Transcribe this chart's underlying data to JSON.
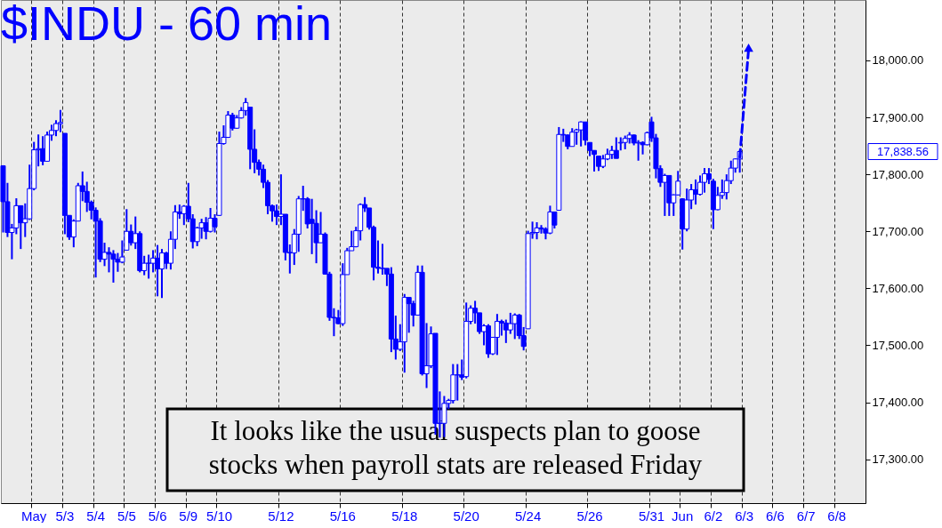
{
  "chart_data": {
    "type": "candlestick",
    "title": "$INDU - 60 min",
    "color": "#0000ff",
    "ylim": [
      17223,
      18106
    ],
    "yticks": [
      {
        "value": 17300,
        "label": "17,300.00"
      },
      {
        "value": 17400,
        "label": "17,400.00"
      },
      {
        "value": 17500,
        "label": "17,500.00"
      },
      {
        "value": 17600,
        "label": "17,600.00"
      },
      {
        "value": 17700,
        "label": "17,700.00"
      },
      {
        "value": 17800,
        "label": "17,800.00"
      },
      {
        "value": 17900,
        "label": "17,900.00"
      },
      {
        "value": 18000,
        "label": "18,000.00"
      }
    ],
    "grid": "x",
    "categories": [
      null,
      null,
      null,
      null,
      null,
      null,
      null,
      "May",
      null,
      null,
      null,
      null,
      null,
      null,
      "5/3",
      null,
      null,
      null,
      null,
      null,
      null,
      "5/4",
      null,
      null,
      null,
      null,
      null,
      null,
      "5/5",
      null,
      null,
      null,
      null,
      null,
      null,
      "5/6",
      null,
      null,
      null,
      null,
      null,
      null,
      "5/9",
      null,
      null,
      null,
      null,
      null,
      null,
      "5/10",
      null,
      null,
      null,
      null,
      null,
      null,
      null,
      null,
      null,
      null,
      null,
      null,
      null,
      "5/12",
      null,
      null,
      null,
      null,
      null,
      null,
      null,
      null,
      null,
      null,
      null,
      null,
      null,
      "5/16",
      null,
      null,
      null,
      null,
      null,
      null,
      null,
      null,
      null,
      null,
      null,
      null,
      null,
      "5/18",
      null,
      null,
      null,
      null,
      null,
      null,
      null,
      null,
      null,
      null,
      null,
      null,
      null,
      "5/20",
      null,
      null,
      null,
      null,
      null,
      null,
      null,
      null,
      null,
      null,
      null,
      null,
      null,
      "5/24",
      null,
      null,
      null,
      null,
      null,
      null,
      null,
      null,
      null,
      null,
      null,
      null,
      null,
      "5/26",
      null,
      null,
      null,
      null,
      null,
      null,
      null,
      null,
      null,
      null,
      null,
      null,
      null,
      "5/31",
      null,
      null,
      null,
      null,
      null,
      null,
      "Jun",
      null,
      null,
      null,
      null,
      null,
      null,
      "6/2",
      null,
      null,
      null,
      null,
      null,
      null,
      "6/3",
      null,
      null,
      null,
      null,
      null,
      null,
      "6/6",
      null,
      null,
      null,
      null,
      null,
      null,
      "6/7",
      null,
      null,
      null,
      null,
      null,
      null,
      "6/8",
      null,
      null,
      null,
      null,
      null,
      null
    ],
    "ohlc": [
      [
        17815,
        17816,
        17698,
        17752
      ],
      [
        17752,
        17785,
        17690,
        17698
      ],
      [
        17698,
        17713,
        17651,
        17706
      ],
      [
        17706,
        17758,
        17695,
        17745
      ],
      [
        17745,
        17745,
        17669,
        17715
      ],
      [
        17715,
        17749,
        17690,
        17722
      ],
      [
        17722,
        17817,
        17720,
        17775
      ],
      [
        17775,
        17857,
        17772,
        17843
      ],
      [
        17843,
        17870,
        17814,
        17845
      ],
      [
        17845,
        17867,
        17816,
        17823
      ],
      [
        17823,
        17875,
        17823,
        17869
      ],
      [
        17869,
        17887,
        17859,
        17877
      ],
      [
        17877,
        17895,
        17867,
        17889
      ],
      [
        17889,
        17913,
        17874,
        17891
      ],
      [
        17872,
        17872,
        17695,
        17728
      ],
      [
        17728,
        17728,
        17685,
        17690
      ],
      [
        17690,
        17721,
        17672,
        17718
      ],
      [
        17718,
        17785,
        17718,
        17780
      ],
      [
        17780,
        17805,
        17753,
        17770
      ],
      [
        17770,
        17787,
        17734,
        17751
      ],
      [
        17751,
        17754,
        17721,
        17737
      ],
      [
        17737,
        17742,
        17619,
        17718
      ],
      [
        17718,
        17723,
        17646,
        17651
      ],
      [
        17651,
        17680,
        17639,
        17663
      ],
      [
        17663,
        17672,
        17628,
        17660
      ],
      [
        17660,
        17667,
        17610,
        17651
      ],
      [
        17651,
        17662,
        17629,
        17646
      ],
      [
        17646,
        17684,
        17644,
        17655
      ],
      [
        17667,
        17739,
        17667,
        17700
      ],
      [
        17700,
        17712,
        17675,
        17680
      ],
      [
        17680,
        17726,
        17669,
        17696
      ],
      [
        17696,
        17700,
        17628,
        17631
      ],
      [
        17631,
        17657,
        17623,
        17644
      ],
      [
        17644,
        17659,
        17617,
        17644
      ],
      [
        17644,
        17667,
        17628,
        17653
      ],
      [
        17653,
        17676,
        17586,
        17634
      ],
      [
        17634,
        17669,
        17583,
        17662
      ],
      [
        17662,
        17664,
        17634,
        17644
      ],
      [
        17644,
        17700,
        17633,
        17686
      ],
      [
        17686,
        17746,
        17669,
        17734
      ],
      [
        17734,
        17747,
        17722,
        17731
      ],
      [
        17731,
        17746,
        17711,
        17744
      ],
      [
        17744,
        17785,
        17716,
        17722
      ],
      [
        17722,
        17730,
        17670,
        17682
      ],
      [
        17682,
        17708,
        17674,
        17706
      ],
      [
        17706,
        17722,
        17687,
        17715
      ],
      [
        17715,
        17725,
        17686,
        17700
      ],
      [
        17700,
        17741,
        17698,
        17723
      ],
      [
        17723,
        17730,
        17698,
        17708
      ],
      [
        17728,
        17875,
        17727,
        17854
      ],
      [
        17854,
        17886,
        17852,
        17865
      ],
      [
        17865,
        17911,
        17864,
        17904
      ],
      [
        17904,
        17908,
        17877,
        17881
      ],
      [
        17881,
        17904,
        17880,
        17899
      ],
      [
        17899,
        17918,
        17898,
        17912
      ],
      [
        17912,
        17934,
        17903,
        17926
      ],
      [
        17918,
        17918,
        17809,
        17844
      ],
      [
        17844,
        17879,
        17802,
        17821
      ],
      [
        17821,
        17826,
        17798,
        17809
      ],
      [
        17809,
        17817,
        17776,
        17786
      ],
      [
        17786,
        17790,
        17730,
        17745
      ],
      [
        17745,
        17747,
        17717,
        17736
      ],
      [
        17736,
        17747,
        17711,
        17726
      ],
      [
        17726,
        17800,
        17711,
        17730
      ],
      [
        17730,
        17730,
        17649,
        17663
      ],
      [
        17663,
        17677,
        17626,
        17662
      ],
      [
        17662,
        17704,
        17641,
        17695
      ],
      [
        17695,
        17762,
        17664,
        17757
      ],
      [
        17757,
        17780,
        17736,
        17757
      ],
      [
        17757,
        17760,
        17705,
        17713
      ],
      [
        17721,
        17757,
        17660,
        17714
      ],
      [
        17714,
        17737,
        17644,
        17680
      ],
      [
        17680,
        17734,
        17680,
        17695
      ],
      [
        17695,
        17698,
        17624,
        17625
      ],
      [
        17625,
        17629,
        17543,
        17549
      ],
      [
        17549,
        17565,
        17516,
        17548
      ],
      [
        17548,
        17562,
        17537,
        17538
      ],
      [
        17538,
        17644,
        17534,
        17624
      ],
      [
        17624,
        17671,
        17624,
        17666
      ],
      [
        17666,
        17701,
        17666,
        17673
      ],
      [
        17673,
        17708,
        17672,
        17701
      ],
      [
        17701,
        17749,
        17684,
        17747
      ],
      [
        17747,
        17760,
        17734,
        17741
      ],
      [
        17741,
        17741,
        17703,
        17707
      ],
      [
        17707,
        17710,
        17614,
        17637
      ],
      [
        17637,
        17684,
        17626,
        17635
      ],
      [
        17635,
        17678,
        17624,
        17635
      ],
      [
        17635,
        17635,
        17604,
        17625
      ],
      [
        17625,
        17637,
        17488,
        17511
      ],
      [
        17511,
        17552,
        17475,
        17493
      ],
      [
        17493,
        17537,
        17490,
        17506
      ],
      [
        17506,
        17590,
        17452,
        17584
      ],
      [
        17584,
        17584,
        17522,
        17573
      ],
      [
        17573,
        17578,
        17533,
        17553
      ],
      [
        17553,
        17640,
        17552,
        17628
      ],
      [
        17628,
        17640,
        17447,
        17450
      ],
      [
        17450,
        17539,
        17425,
        17464
      ],
      [
        17464,
        17533,
        17460,
        17520
      ],
      [
        17521,
        17521,
        17343,
        17363
      ],
      [
        17363,
        17419,
        17338,
        17363
      ],
      [
        17363,
        17411,
        17339,
        17398
      ],
      [
        17398,
        17406,
        17388,
        17403
      ],
      [
        17403,
        17467,
        17398,
        17448
      ],
      [
        17448,
        17467,
        17403,
        17448
      ],
      [
        17448,
        17475,
        17439,
        17444
      ],
      [
        17445,
        17575,
        17442,
        17542
      ],
      [
        17542,
        17570,
        17537,
        17565
      ],
      [
        17565,
        17578,
        17538,
        17557
      ],
      [
        17557,
        17557,
        17520,
        17524
      ],
      [
        17524,
        17537,
        17500,
        17534
      ],
      [
        17534,
        17537,
        17478,
        17485
      ],
      [
        17485,
        17514,
        17483,
        17514
      ],
      [
        17514,
        17555,
        17483,
        17542
      ],
      [
        17542,
        17545,
        17517,
        17539
      ],
      [
        17539,
        17545,
        17504,
        17527
      ],
      [
        17527,
        17557,
        17520,
        17538
      ],
      [
        17538,
        17556,
        17511,
        17553
      ],
      [
        17553,
        17555,
        17511,
        17517
      ],
      [
        17517,
        17532,
        17491,
        17498
      ],
      [
        17529,
        17701,
        17529,
        17696
      ],
      [
        17696,
        17717,
        17687,
        17698
      ],
      [
        17698,
        17716,
        17686,
        17706
      ],
      [
        17706,
        17711,
        17696,
        17704
      ],
      [
        17704,
        17707,
        17686,
        17697
      ],
      [
        17697,
        17745,
        17695,
        17734
      ],
      [
        17734,
        17734,
        17705,
        17711
      ],
      [
        17737,
        17883,
        17737,
        17870
      ],
      [
        17870,
        17880,
        17857,
        17869
      ],
      [
        17869,
        17870,
        17844,
        17849
      ],
      [
        17849,
        17881,
        17849,
        17874
      ],
      [
        17874,
        17880,
        17852,
        17878
      ],
      [
        17878,
        17893,
        17849,
        17892
      ],
      [
        17892,
        17892,
        17851,
        17860
      ],
      [
        17856,
        17856,
        17832,
        17842
      ],
      [
        17842,
        17842,
        17805,
        17835
      ],
      [
        17832,
        17832,
        17806,
        17814
      ],
      [
        17814,
        17834,
        17811,
        17827
      ],
      [
        17827,
        17845,
        17825,
        17835
      ],
      [
        17835,
        17850,
        17827,
        17842
      ],
      [
        17842,
        17865,
        17828,
        17828
      ],
      [
        17855,
        17865,
        17842,
        17856
      ],
      [
        17856,
        17868,
        17844,
        17863
      ],
      [
        17863,
        17874,
        17854,
        17869
      ],
      [
        17869,
        17870,
        17851,
        17855
      ],
      [
        17855,
        17860,
        17824,
        17856
      ],
      [
        17856,
        17858,
        17835,
        17852
      ],
      [
        17852,
        17875,
        17851,
        17873
      ],
      [
        17892,
        17901,
        17857,
        17864
      ],
      [
        17864,
        17871,
        17793,
        17810
      ],
      [
        17810,
        17816,
        17778,
        17786
      ],
      [
        17786,
        17801,
        17727,
        17798
      ],
      [
        17798,
        17798,
        17727,
        17750
      ],
      [
        17750,
        17765,
        17727,
        17764
      ],
      [
        17764,
        17806,
        17763,
        17788
      ],
      [
        17757,
        17758,
        17668,
        17704
      ],
      [
        17704,
        17775,
        17700,
        17755
      ],
      [
        17755,
        17783,
        17739,
        17773
      ],
      [
        17773,
        17791,
        17747,
        17765
      ],
      [
        17765,
        17798,
        17763,
        17786
      ],
      [
        17786,
        17811,
        17768,
        17801
      ],
      [
        17801,
        17811,
        17783,
        17791
      ],
      [
        17788,
        17792,
        17704,
        17738
      ],
      [
        17738,
        17778,
        17737,
        17763
      ],
      [
        17763,
        17791,
        17757,
        17768
      ],
      [
        17768,
        17800,
        17756,
        17789
      ],
      [
        17789,
        17824,
        17783,
        17811
      ],
      [
        17811,
        17828,
        17803,
        17827
      ],
      [
        17827,
        17842,
        17803,
        17840
      ],
      null,
      null,
      null,
      null,
      null,
      null,
      null,
      null,
      null,
      null,
      null,
      null,
      null,
      null,
      null,
      null,
      null,
      null,
      null,
      null,
      null,
      null,
      null,
      null,
      null,
      null,
      null,
      null
    ],
    "series": [
      {
        "type": "line",
        "color": "#0000ff",
        "line_style": "dashed",
        "marker": "triangle",
        "values": [
          null,
          null,
          null,
          null,
          null,
          null,
          null,
          null,
          null,
          null,
          null,
          null,
          null,
          null,
          null,
          null,
          null,
          null,
          null,
          null,
          null,
          null,
          null,
          null,
          null,
          null,
          null,
          null,
          null,
          null,
          null,
          null,
          null,
          null,
          null,
          null,
          null,
          null,
          null,
          null,
          null,
          null,
          null,
          null,
          null,
          null,
          null,
          null,
          null,
          null,
          null,
          null,
          null,
          null,
          null,
          null,
          null,
          null,
          null,
          null,
          null,
          null,
          null,
          null,
          null,
          null,
          null,
          null,
          null,
          null,
          null,
          null,
          null,
          null,
          null,
          null,
          null,
          null,
          null,
          null,
          null,
          null,
          null,
          null,
          null,
          null,
          null,
          null,
          null,
          null,
          null,
          null,
          null,
          null,
          null,
          null,
          null,
          null,
          null,
          null,
          null,
          null,
          null,
          null,
          null,
          null,
          null,
          null,
          null,
          null,
          null,
          null,
          null,
          null,
          null,
          null,
          null,
          null,
          null,
          null,
          null,
          null,
          null,
          null,
          null,
          null,
          null,
          null,
          null,
          null,
          null,
          null,
          null,
          null,
          null,
          null,
          null,
          null,
          null,
          null,
          null,
          null,
          null,
          null,
          null,
          null,
          null,
          null,
          null,
          null,
          null,
          null,
          null,
          null,
          null,
          null,
          null,
          null,
          null,
          null,
          null,
          null,
          null,
          null,
          null,
          null,
          null,
          17830,
          null,
          18020,
          null,
          null,
          null,
          null,
          null,
          null,
          null,
          null,
          null,
          null,
          null,
          null,
          null,
          null,
          null,
          null,
          null,
          null,
          null,
          null,
          null,
          null,
          null,
          null,
          null,
          null
        ]
      }
    ],
    "annotations": [
      "It looks like the usual suspects plan to goose\nstocks when payroll stats are released Friday",
      "17,838.56"
    ]
  }
}
